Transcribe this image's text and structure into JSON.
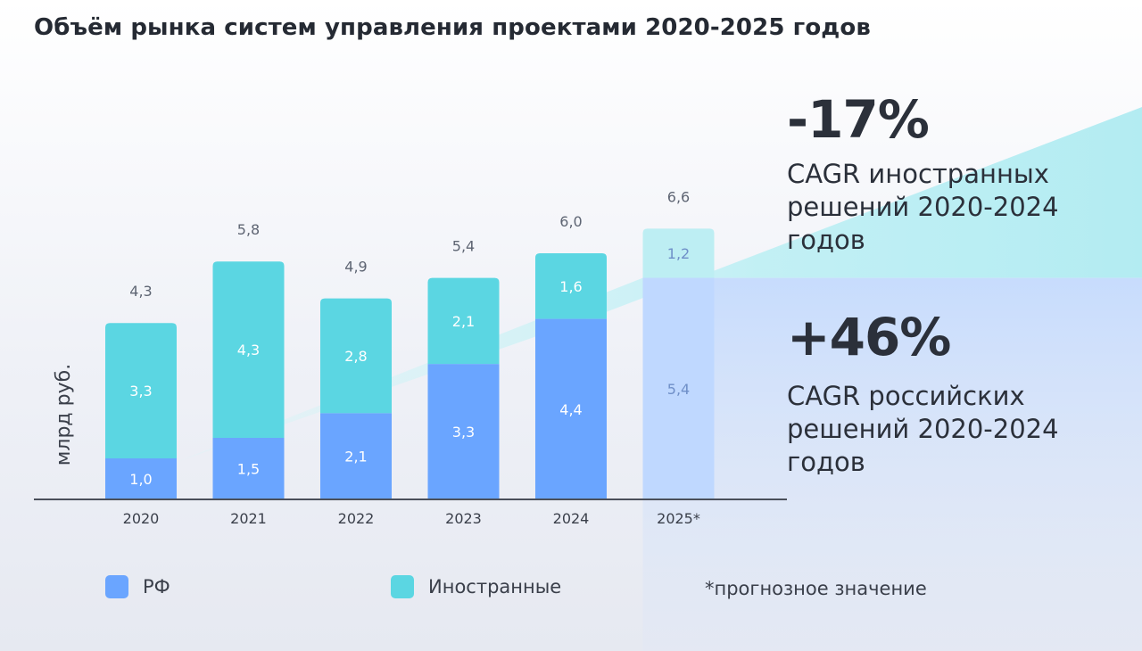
{
  "title": "Объём рынка систем управления проектами 2020-2025 годов",
  "chart_data": {
    "type": "bar",
    "stacked": true,
    "categories": [
      "2020",
      "2021",
      "2022",
      "2023",
      "2024",
      "2025*"
    ],
    "series": [
      {
        "name": "РФ",
        "values": [
          1.0,
          1.5,
          2.1,
          3.3,
          4.4,
          5.4
        ],
        "labels": [
          "1,0",
          "1,5",
          "2,1",
          "3,3",
          "4,4",
          "5,4"
        ],
        "color": "#6aa5ff"
      },
      {
        "name": "Иностранные",
        "values": [
          3.3,
          4.3,
          2.8,
          2.1,
          1.6,
          1.2
        ],
        "labels": [
          "3,3",
          "4,3",
          "2,8",
          "2,1",
          "1,6",
          "1,2"
        ],
        "color": "#5bd6e2"
      }
    ],
    "totals": [
      4.3,
      5.8,
      4.9,
      5.4,
      6.0,
      6.6
    ],
    "total_labels": [
      "4,3",
      "5,8",
      "4,9",
      "5,4",
      "6,0",
      "6,6"
    ],
    "forecast_index": 5,
    "ylabel": "млрд руб.",
    "ylim": [
      0,
      6.6
    ],
    "grid": false,
    "legend": "bottom"
  },
  "stats": {
    "foreign_value": "-17%",
    "foreign_desc": [
      "CAGR иностранных",
      "решений 2020-2024",
      "годов"
    ],
    "russian_value": "+46%",
    "russian_desc": [
      "CAGR российских",
      "решений 2020-2024",
      "годов"
    ]
  },
  "legend": {
    "rf_label": "РФ",
    "rf_color": "#6aa5ff",
    "foreign_label": "Иностранные",
    "foreign_color": "#5bd6e2",
    "footnote": "*прогнозное значение"
  },
  "colors": {
    "axis": "#4a4f5a",
    "total_text": "#5e6573",
    "bar_text": "#ffffff",
    "forecast_rf": "#bfd8ff",
    "forecast_foreign": "#bdeef3",
    "forecast_text": "#6f8fc8"
  }
}
